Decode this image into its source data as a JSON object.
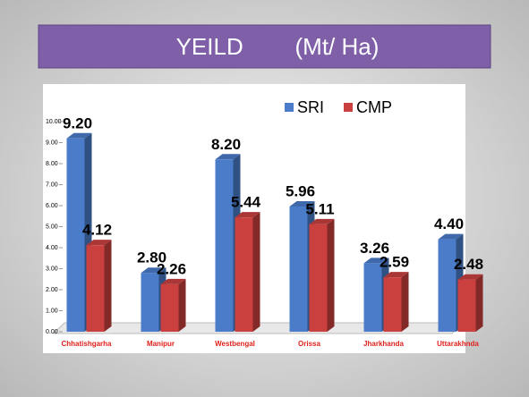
{
  "chart_data": {
    "type": "bar",
    "title": "YEILD        (Mt/ Ha)",
    "categories": [
      "Chhatishgarha",
      "Manipur",
      "Westbengal",
      "Orissa",
      "Jharkhanda",
      "Uttarakhnda"
    ],
    "series": [
      {
        "name": "SRI",
        "color": "#4a7cc9",
        "values": [
          9.2,
          2.8,
          8.2,
          5.96,
          3.26,
          4.4
        ],
        "value_labels": [
          "9.20",
          "2.80",
          "8.20",
          "5.96",
          "3.26",
          "4.40"
        ]
      },
      {
        "name": "CMP",
        "color": "#c9403f",
        "values": [
          4.12,
          2.26,
          5.44,
          5.11,
          2.59,
          2.48
        ],
        "value_labels": [
          "4.12",
          "2.26",
          "5.44",
          "5.11",
          "2.59",
          "2.48"
        ]
      }
    ],
    "ylim": [
      0,
      10
    ],
    "yticks": [
      {
        "value": 0,
        "label": "0.00"
      },
      {
        "value": 1,
        "label": "1.00"
      },
      {
        "value": 2,
        "label": "2.00"
      },
      {
        "value": 3,
        "label": "3.00"
      },
      {
        "value": 4,
        "label": "4.00"
      },
      {
        "value": 5,
        "label": "5.00"
      },
      {
        "value": 6,
        "label": "6.00"
      },
      {
        "value": 7,
        "label": "7.00"
      },
      {
        "value": 8,
        "label": "8.00"
      },
      {
        "value": 9,
        "label": "9.00"
      },
      {
        "value": 10,
        "label": "10.00"
      }
    ],
    "legend": "top-right"
  }
}
